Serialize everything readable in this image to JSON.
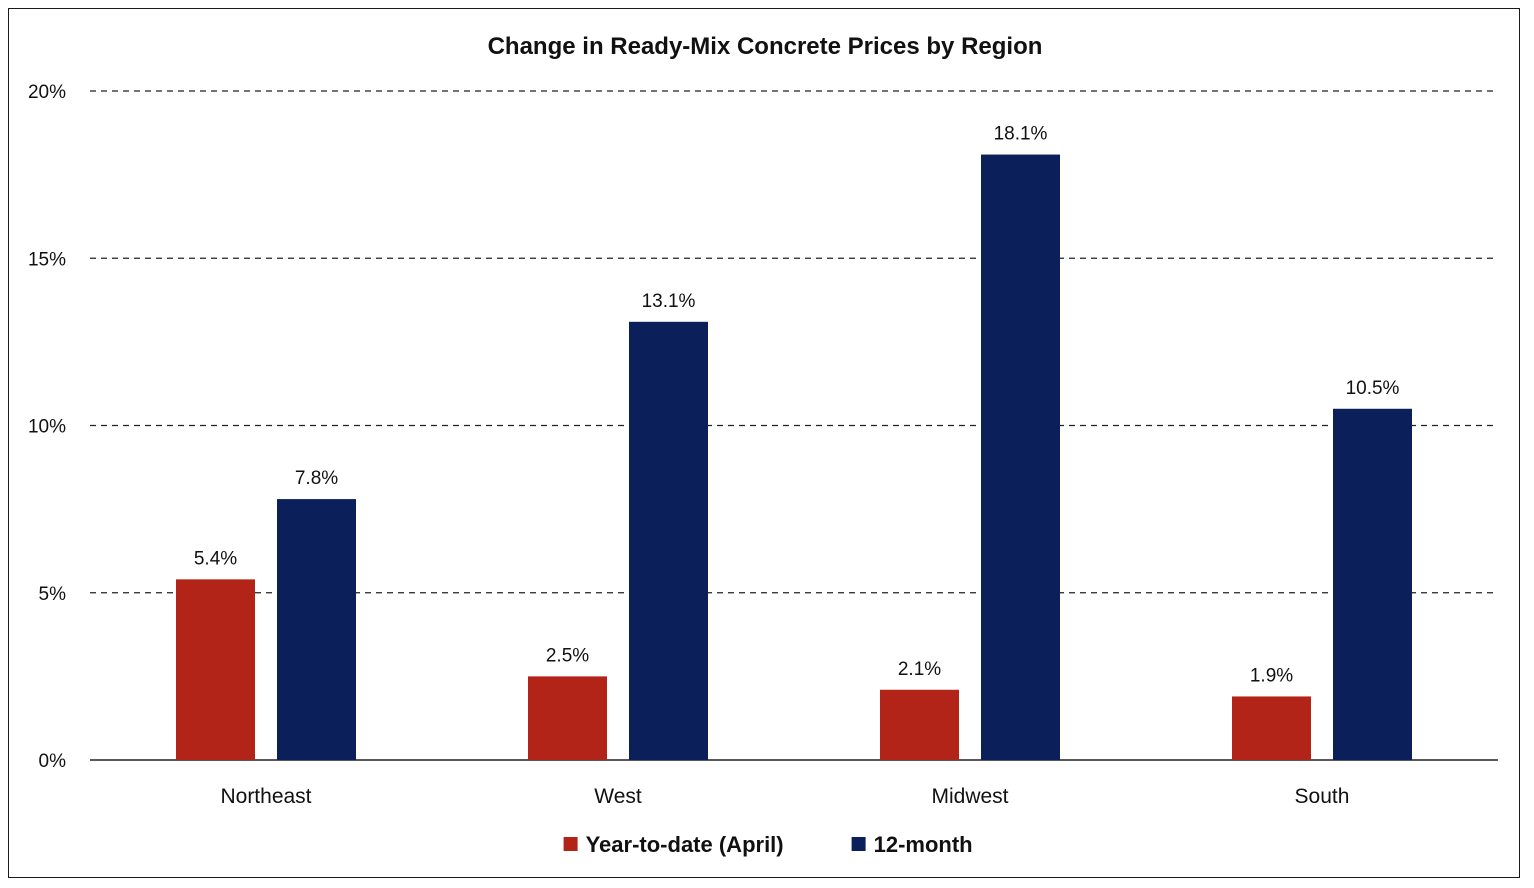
{
  "chart_data": {
    "type": "bar",
    "title": "Change in Ready-Mix Concrete Prices by Region",
    "categories": [
      "Northeast",
      "West",
      "Midwest",
      "South"
    ],
    "series": [
      {
        "name": "Year-to-date (April)",
        "values": [
          5.4,
          2.5,
          2.1,
          1.9
        ],
        "labels": [
          "5.4%",
          "2.5%",
          "2.1%",
          "1.9%"
        ],
        "color": "#b22418"
      },
      {
        "name": "12-month",
        "values": [
          7.8,
          13.1,
          18.1,
          10.5
        ],
        "labels": [
          "7.8%",
          "13.1%",
          "18.1%",
          "10.5%"
        ],
        "color": "#0b1f5b"
      }
    ],
    "ylim": [
      0,
      20
    ],
    "yticks": [
      0,
      5,
      10,
      15,
      20
    ],
    "ytick_labels": [
      "0%",
      "5%",
      "10%",
      "15%",
      "20%"
    ],
    "xlabel": "",
    "ylabel": "",
    "grid": "dashed horizontal",
    "legend": "bottom-center"
  }
}
